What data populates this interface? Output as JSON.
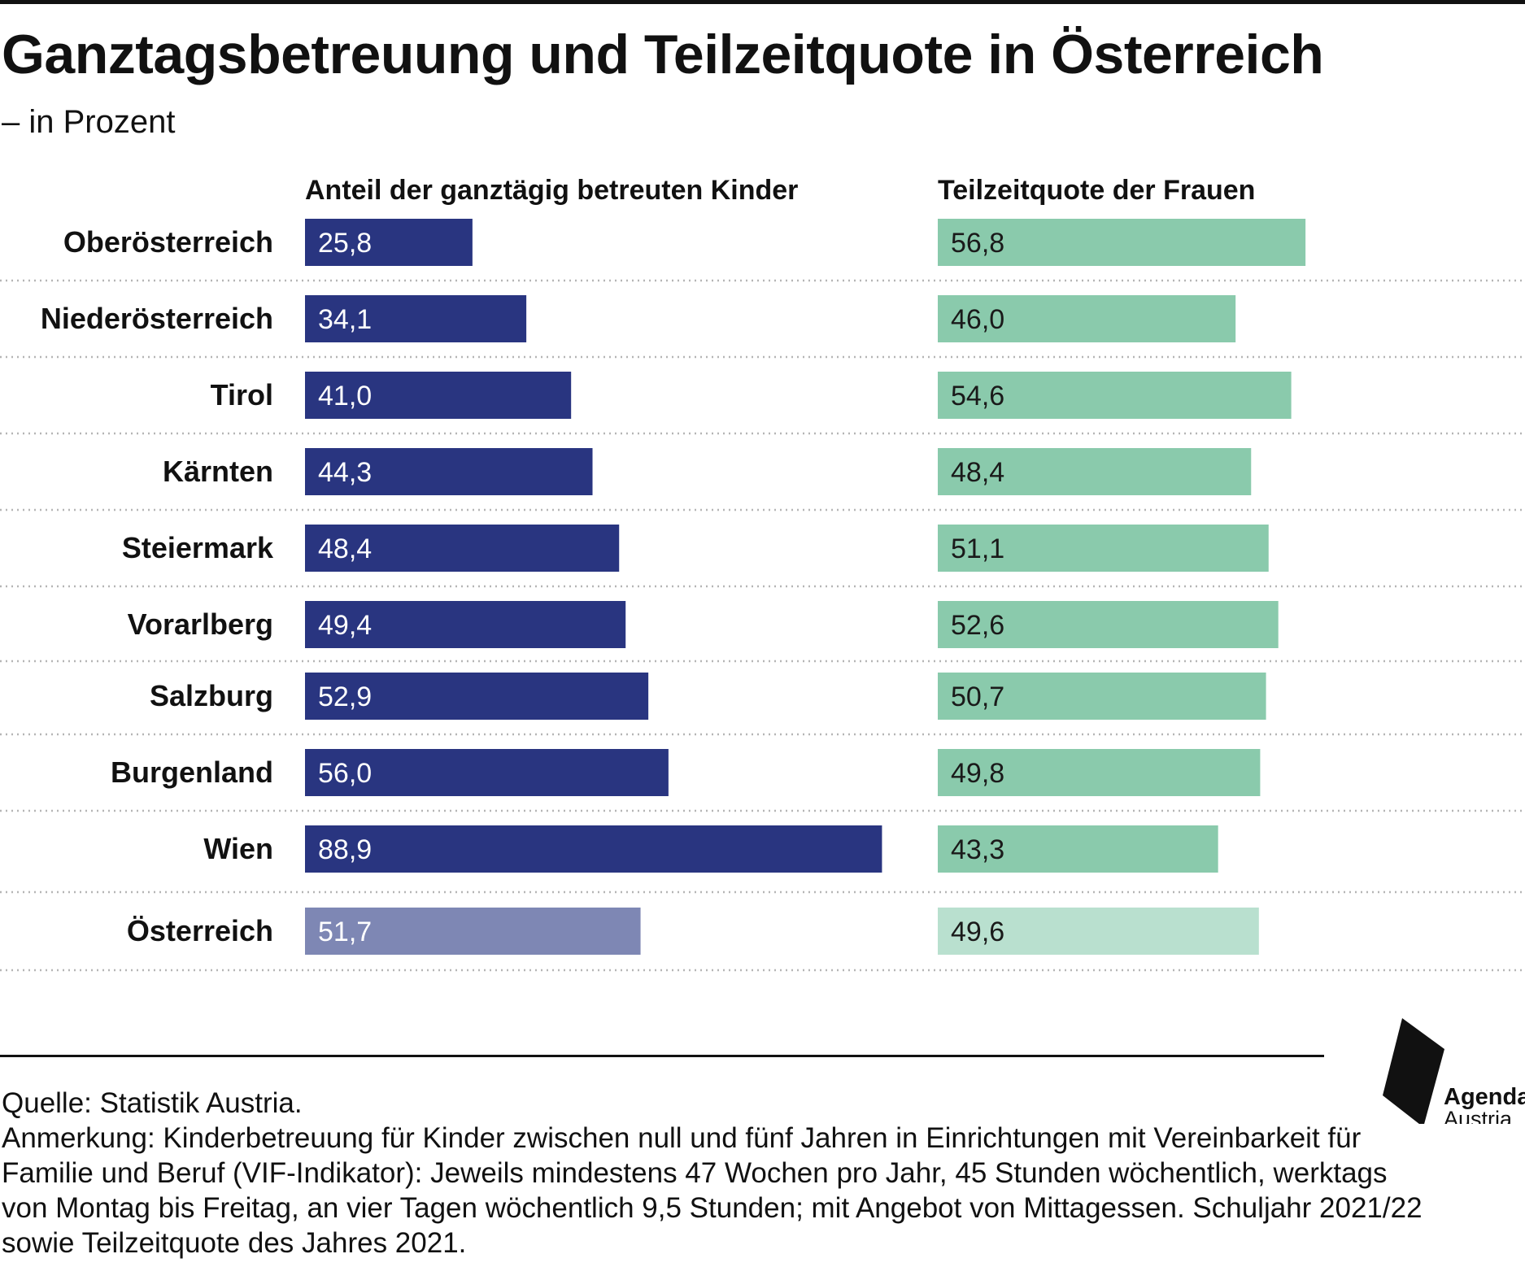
{
  "title": "Ganztagsbetreuung und Teilzeitquote in Österreich",
  "subtitle": "– in Prozent",
  "chart_data": {
    "type": "bar",
    "orientation": "horizontal",
    "categories": [
      "Oberösterreich",
      "Niederösterreich",
      "Tirol",
      "Kärnten",
      "Steiermark",
      "Vorarlberg",
      "Salzburg",
      "Burgenland",
      "Wien",
      "Österreich"
    ],
    "highlight_category": "Österreich",
    "series": [
      {
        "name": "Anteil der ganztägig betreuten Kinder",
        "values": [
          25.8,
          34.1,
          41.0,
          44.3,
          48.4,
          49.4,
          52.9,
          56.0,
          88.9,
          51.7
        ],
        "labels": [
          "25,8",
          "34,1",
          "41,0",
          "44,3",
          "48,4",
          "49,4",
          "52,9",
          "56,0",
          "88,9",
          "51,7"
        ],
        "color": "#293580",
        "total_color": "#7E87B4",
        "label_color": "#ffffff"
      },
      {
        "name": "Teilzeitquote der Frauen",
        "values": [
          56.8,
          46.0,
          54.6,
          48.4,
          51.1,
          52.6,
          50.7,
          49.8,
          43.3,
          49.6
        ],
        "labels": [
          "56,8",
          "46,0",
          "54,6",
          "48,4",
          "51,1",
          "52,6",
          "50,7",
          "49,8",
          "43,3",
          "49,6"
        ],
        "color": "#8ACAAC",
        "total_color": "#B9E0CF",
        "label_color": "#1a1a1a"
      }
    ],
    "grid": "dotted row separators",
    "legend": "column headers above each panel"
  },
  "source": "Quelle: Statistik Austria.",
  "note": "Anmerkung: Kinderbetreuung für Kinder zwischen null und fünf Jahren in Einrichtungen mit Vereinbarkeit für Familie und Beruf (VIF-Indikator): Jeweils mindestens 47 Wochen pro Jahr, 45 Stunden wöchentlich, werktags von Montag bis Freitag, an vier Tagen wöchentlich 9,5 Stunden; mit Angebot von Mittagessen. Schuljahr 2021/22 sowie Teilzeitquote des Jahres 2021.",
  "logo": {
    "line1": "Agenda",
    "line2": "Austria"
  }
}
